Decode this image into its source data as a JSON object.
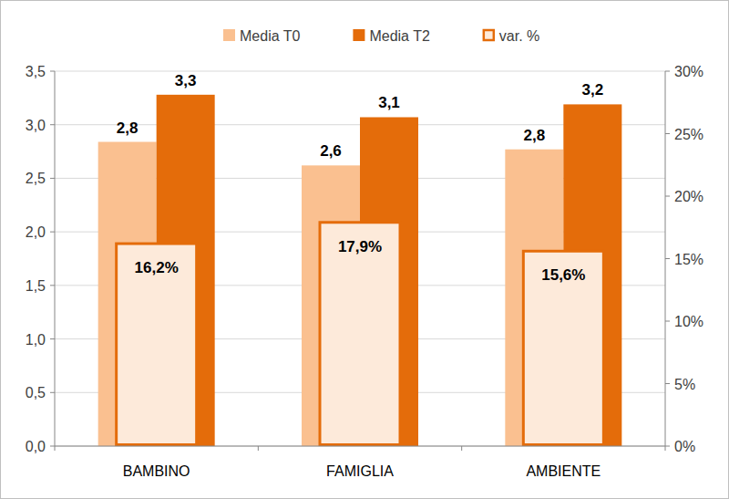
{
  "chart_data": {
    "type": "bar",
    "categories": [
      "BAMBINO",
      "FAMIGLIA",
      "AMBIENTE"
    ],
    "series": [
      {
        "name": "Media T0",
        "color": "#fac090",
        "values": [
          2.84,
          2.62,
          2.77
        ],
        "value_labels": [
          "2,8",
          "2,6",
          "2,8"
        ]
      },
      {
        "name": "Media T2",
        "color": "#e46c0a",
        "values": [
          3.28,
          3.07,
          3.19
        ],
        "value_labels": [
          "3,3",
          "3,1",
          "3,2"
        ]
      },
      {
        "name": "var. %",
        "color": "#e46c0a",
        "axis": "y2",
        "values": [
          16.2,
          17.9,
          15.6
        ],
        "value_labels": [
          "16,2%",
          "17,9%",
          "15,6%"
        ]
      }
    ],
    "ylim": [
      0,
      3.5
    ],
    "yticks": [
      {
        "value": 0,
        "label": "0,0"
      },
      {
        "value": 0.5,
        "label": "0,5"
      },
      {
        "value": 1,
        "label": "1,0"
      },
      {
        "value": 1.5,
        "label": "1,5"
      },
      {
        "value": 2,
        "label": "2,0"
      },
      {
        "value": 2.5,
        "label": "2,5"
      },
      {
        "value": 3,
        "label": "3,0"
      },
      {
        "value": 3.5,
        "label": "3,5"
      }
    ],
    "y2lim": [
      0,
      30
    ],
    "y2ticks": [
      {
        "value": 0,
        "label": "0%"
      },
      {
        "value": 5,
        "label": "5%"
      },
      {
        "value": 10,
        "label": "10%"
      },
      {
        "value": 15,
        "label": "15%"
      },
      {
        "value": 20,
        "label": "20%"
      },
      {
        "value": 25,
        "label": "25%"
      },
      {
        "value": 30,
        "label": "30%"
      }
    ],
    "grid": true,
    "legend": "top",
    "data_labels": true
  }
}
